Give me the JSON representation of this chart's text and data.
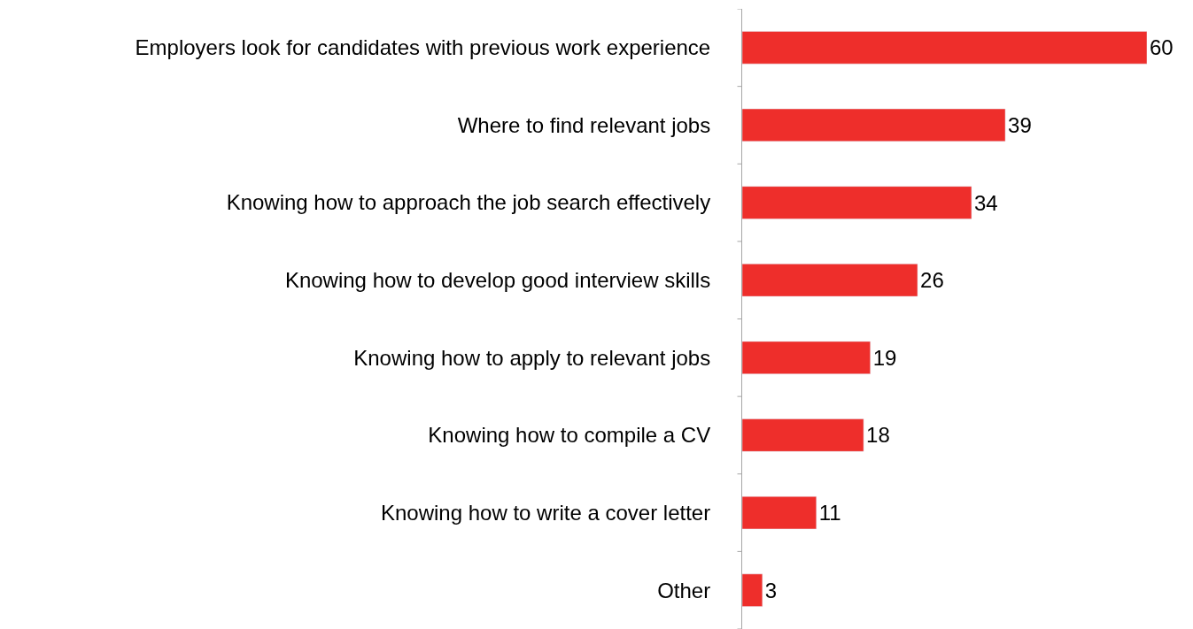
{
  "chart_data": {
    "type": "bar",
    "orientation": "horizontal",
    "categories": [
      "Employers look for candidates with previous work experience",
      "Where to find relevant jobs",
      "Knowing how to approach the job search effectively",
      "Knowing how to develop good interview skills",
      "Knowing how to apply to relevant jobs",
      "Knowing how to compile a CV",
      "Knowing how to write a cover letter",
      "Other"
    ],
    "values": [
      60,
      39,
      34,
      26,
      19,
      18,
      11,
      3
    ],
    "color": "#ee2e2b",
    "xlim": [
      0,
      60
    ],
    "tick_labels": "y",
    "data_labels": true,
    "legend": false
  }
}
